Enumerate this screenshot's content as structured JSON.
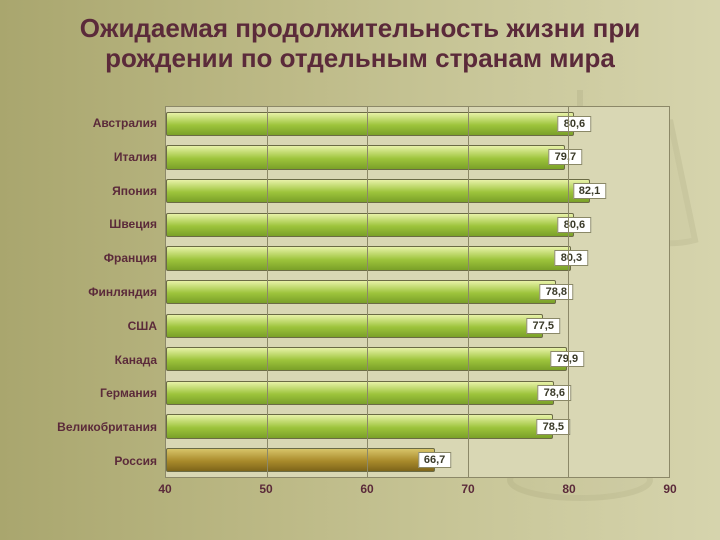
{
  "title": "Ожидаемая продолжительность жизни при рождении по отдельным странам мира",
  "chart": {
    "type": "bar-horizontal",
    "xmin": 40,
    "xmax": 90,
    "xtick_step": 10,
    "xticks": [
      "40",
      "50",
      "60",
      "70",
      "80",
      "90"
    ],
    "background_color": "#d9d7b4",
    "grid_color": "#8c8868",
    "border_color": "#8c8868",
    "title_color": "#5b2a3a",
    "title_fontsize": 26,
    "label_color": "#5b2a3a",
    "label_fontsize": 12,
    "value_fontsize": 11,
    "value_box_bg": "#ffffff",
    "value_box_border": "#8a8867",
    "bar_gradient_default": [
      "#e8f2a8",
      "#9dc43c",
      "#7aa028"
    ],
    "bar_gradient_highlight": [
      "#d7c469",
      "#a98a2b",
      "#7e651a"
    ],
    "rows": [
      {
        "label": "Австралия",
        "value": 80.6,
        "display": "80,6",
        "highlight": false
      },
      {
        "label": "Италия",
        "value": 79.7,
        "display": "79,7",
        "highlight": false
      },
      {
        "label": "Япония",
        "value": 82.1,
        "display": "82,1",
        "highlight": false
      },
      {
        "label": "Швеция",
        "value": 80.6,
        "display": "80,6",
        "highlight": false
      },
      {
        "label": "Франция",
        "value": 80.3,
        "display": "80,3",
        "highlight": false
      },
      {
        "label": "Финляндия",
        "value": 78.8,
        "display": "78,8",
        "highlight": false
      },
      {
        "label": "США",
        "value": 77.5,
        "display": "77,5",
        "highlight": false
      },
      {
        "label": "Канада",
        "value": 79.9,
        "display": "79,9",
        "highlight": false
      },
      {
        "label": "Германия",
        "value": 78.6,
        "display": "78,6",
        "highlight": false
      },
      {
        "label": "Великобритания",
        "value": 78.5,
        "display": "78,5",
        "highlight": false
      },
      {
        "label": "Россия",
        "value": 66.7,
        "display": "66,7",
        "highlight": true
      }
    ]
  },
  "page_bg_gradient": [
    "#a9a66e",
    "#bdba87",
    "#c8c698",
    "#d6d4ad"
  ]
}
